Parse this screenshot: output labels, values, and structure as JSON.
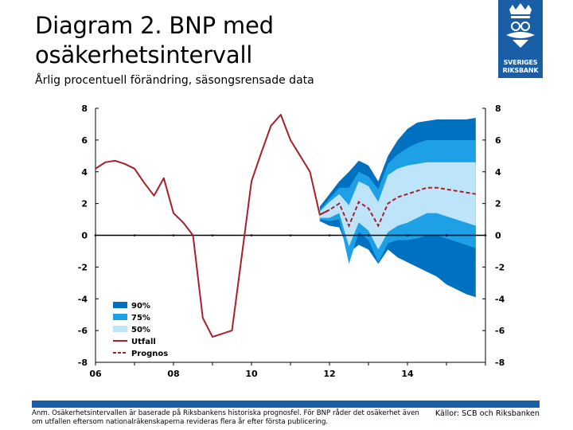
{
  "header": {
    "title": "Diagram 2. BNP med osäkerhetsintervall",
    "subtitle": "Årlig procentuell förändring, säsongsrensade data"
  },
  "logo": {
    "line1": "SVERIGES",
    "line2": "RIKSBANK"
  },
  "footer": {
    "note": "Anm. Osäkerhetsintervallen är baserade på Riksbankens historiska prognosfel. För BNP råder det osäkerhet även om utfallen eftersom nationalräkenskaperna revideras flera år efter första publicering.",
    "source": "Källor: SCB och Riksbanken"
  },
  "colors": {
    "band90": "#0070c0",
    "band75": "#1ea0e6",
    "band50": "#bde4f8",
    "actual": "#a6202c",
    "grid": "#000000",
    "brand": "#1a5ea8"
  },
  "chart_data": {
    "type": "area",
    "title": "Diagram 2. BNP med osäkerhetsintervall",
    "ylabel": "Årlig procentuell förändring, säsongsrensade data",
    "xlim": [
      2006.0,
      2016.0
    ],
    "ylim": [
      -8,
      8
    ],
    "x_ticks": [
      "06",
      "08",
      "10",
      "12",
      "14"
    ],
    "x_tick_values": [
      2006,
      2008,
      2010,
      2012,
      2014
    ],
    "y_ticks": [
      "8",
      "6",
      "4",
      "2",
      "0",
      "-2",
      "-4",
      "-6",
      "-8"
    ],
    "y_tick_values": [
      8,
      6,
      4,
      2,
      0,
      -2,
      -4,
      -6,
      -8
    ],
    "legend": [
      {
        "key": "band90",
        "label": "90%"
      },
      {
        "key": "band75",
        "label": "75%"
      },
      {
        "key": "band50",
        "label": "50%"
      },
      {
        "key": "actual",
        "label": "Utfall"
      },
      {
        "key": "forecast",
        "label": "Prognos"
      }
    ],
    "actual": {
      "name": "Utfall",
      "x": [
        2006.0,
        2006.25,
        2006.5,
        2006.75,
        2007.0,
        2007.25,
        2007.5,
        2007.75,
        2008.0,
        2008.25,
        2008.5,
        2008.75,
        2009.0,
        2009.25,
        2009.5,
        2009.75,
        2010.0,
        2010.25,
        2010.5,
        2010.75,
        2011.0,
        2011.25,
        2011.5,
        2011.75,
        2012.0
      ],
      "values": [
        4.2,
        4.6,
        4.7,
        4.5,
        4.2,
        3.3,
        2.5,
        3.6,
        1.4,
        0.8,
        0.0,
        -5.2,
        -6.4,
        -6.2,
        -6.0,
        -1.3,
        3.4,
        5.2,
        6.9,
        7.6,
        6.0,
        5.0,
        4.0,
        1.3,
        1.6
      ],
      "step": false
    },
    "forecast": {
      "name": "Prognos",
      "x": [
        2011.75,
        2012.0,
        2012.25,
        2012.5,
        2012.75,
        2013.0,
        2013.25,
        2013.5,
        2013.75,
        2014.0,
        2014.25,
        2014.5,
        2014.75,
        2015.0,
        2015.25,
        2015.5,
        2015.75
      ],
      "values": [
        1.3,
        1.6,
        2.0,
        0.6,
        2.1,
        1.7,
        0.6,
        2.0,
        2.4,
        2.6,
        2.8,
        3.0,
        3.0,
        2.9,
        2.8,
        2.7,
        2.6
      ]
    },
    "bands": {
      "x": [
        2011.75,
        2012.0,
        2012.25,
        2012.5,
        2012.75,
        2013.0,
        2013.25,
        2013.5,
        2013.75,
        2014.0,
        2014.25,
        2014.5,
        2014.75,
        2015.0,
        2015.25,
        2015.5,
        2015.75
      ],
      "band90": {
        "upper": [
          1.8,
          2.6,
          3.4,
          4.0,
          4.7,
          4.4,
          3.4,
          5.0,
          6.0,
          6.7,
          7.1,
          7.2,
          7.3,
          7.3,
          7.3,
          7.3,
          7.4
        ],
        "lower": [
          0.9,
          0.6,
          0.5,
          -1.1,
          -0.6,
          -0.9,
          -1.8,
          -0.9,
          -1.4,
          -1.7,
          -2.0,
          -2.3,
          -2.6,
          -3.1,
          -3.4,
          -3.7,
          -3.9
        ]
      },
      "band75": {
        "upper": [
          1.6,
          2.3,
          3.0,
          3.0,
          4.0,
          3.7,
          2.9,
          4.5,
          5.1,
          5.5,
          5.8,
          6.0,
          6.0,
          6.0,
          6.0,
          6.0,
          6.0
        ]
      },
      "band50": {
        "upper": [
          1.5,
          2.1,
          2.6,
          1.9,
          3.4,
          3.1,
          2.1,
          3.8,
          4.2,
          4.4,
          4.5,
          4.6,
          4.6,
          4.6,
          4.6,
          4.6,
          4.6
        ]
      }
    }
  }
}
